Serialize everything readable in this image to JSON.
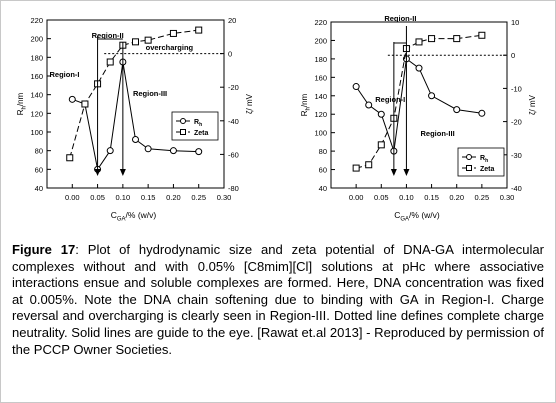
{
  "chart_data": [
    {
      "type": "line",
      "x": [
        0.0,
        0.025,
        0.05,
        0.075,
        0.1,
        0.125,
        0.15,
        0.2,
        0.25
      ],
      "xlabel_main": "C",
      "xlabel_sub": "GA",
      "xlabel_tail": "/% (w/v)",
      "ylabel_left": "R",
      "ylabel_left_sub": "h",
      "ylabel_left_tail": "/nm",
      "ylabel_right": "ζ/ mV",
      "xlim": [
        -0.05,
        0.3
      ],
      "ylim_left": [
        40,
        220
      ],
      "ylim_right": [
        -80,
        20
      ],
      "x_ticks": [
        "-0.05",
        "0.00",
        "0.05",
        "0.10",
        "0.15",
        "0.20",
        "0.25",
        "0.30"
      ],
      "y_left_ticks": [
        "40",
        "60",
        "80",
        "100",
        "120",
        "140",
        "160",
        "180",
        "200",
        "220"
      ],
      "y_right_ticks": [
        "-80",
        "-60",
        "-40",
        "-20",
        "0",
        "20"
      ],
      "series": [
        {
          "name": "Rh",
          "name_main": "R",
          "name_sub": "h",
          "axis": "left",
          "marker": "circle",
          "points": [
            [
              0.0,
              135
            ],
            [
              0.025,
              130
            ],
            [
              0.05,
              60
            ],
            [
              0.075,
              80
            ],
            [
              0.1,
              175
            ],
            [
              0.125,
              92
            ],
            [
              0.15,
              82
            ],
            [
              0.2,
              80
            ],
            [
              0.25,
              79
            ]
          ]
        },
        {
          "name": "Zeta",
          "axis": "right",
          "marker": "square",
          "points": [
            [
              -0.005,
              -62
            ],
            [
              0.025,
              -30
            ],
            [
              0.05,
              -18
            ],
            [
              0.075,
              -5
            ],
            [
              0.1,
              5
            ],
            [
              0.125,
              7
            ],
            [
              0.15,
              8
            ],
            [
              0.2,
              12
            ],
            [
              0.25,
              14
            ]
          ]
        }
      ],
      "annotations": {
        "region1": "Region-I",
        "region2": "Region-II",
        "region3": "Region-III",
        "overcharging": "overcharging"
      }
    },
    {
      "type": "line",
      "x": [
        0.0,
        0.025,
        0.05,
        0.075,
        0.1,
        0.125,
        0.15,
        0.2,
        0.25
      ],
      "xlabel_main": "C",
      "xlabel_sub": "GA",
      "xlabel_tail": "/% (w/v)",
      "ylabel_left": "R",
      "ylabel_left_sub": "h",
      "ylabel_left_tail": "/nm",
      "ylabel_right": "ζ/ mV",
      "xlim": [
        -0.05,
        0.3
      ],
      "ylim_left": [
        40,
        220
      ],
      "ylim_right": [
        -40,
        10
      ],
      "x_ticks": [
        "-0.05",
        "0.00",
        "0.05",
        "0.10",
        "0.15",
        "0.20",
        "0.25",
        "0.30"
      ],
      "y_left_ticks": [
        "40",
        "60",
        "80",
        "100",
        "120",
        "140",
        "160",
        "180",
        "200",
        "220"
      ],
      "y_right_ticks": [
        "-40",
        "-30",
        "-20",
        "-10",
        "0",
        "10"
      ],
      "series": [
        {
          "name": "Rh",
          "name_main": "R",
          "name_sub": "h",
          "axis": "left",
          "marker": "circle",
          "points": [
            [
              0.0,
              150
            ],
            [
              0.025,
              130
            ],
            [
              0.05,
              120
            ],
            [
              0.075,
              80
            ],
            [
              0.1,
              180
            ],
            [
              0.125,
              170
            ],
            [
              0.15,
              140
            ],
            [
              0.2,
              125
            ],
            [
              0.25,
              121
            ]
          ]
        },
        {
          "name": "Zeta",
          "axis": "right",
          "marker": "square",
          "points": [
            [
              0.0,
              -34
            ],
            [
              0.025,
              -33
            ],
            [
              0.05,
              -27
            ],
            [
              0.075,
              -19
            ],
            [
              0.1,
              2
            ],
            [
              0.125,
              4
            ],
            [
              0.15,
              5
            ],
            [
              0.2,
              5
            ],
            [
              0.25,
              6
            ]
          ]
        }
      ],
      "annotations": {
        "region1": "Region-I",
        "region2": "Region-II",
        "region3": "Region-III"
      }
    }
  ],
  "caption": {
    "figure_label": "Figure 17",
    "text": ":   Plot of hydrodynamic size and zeta potential of DNA-GA intermolecular complexes without and with 0.05% [C8mim][Cl] solutions at pHc where associative interactions ensue and soluble complexes are formed.  Here, DNA concentration was fixed at 0.005%. Note the DNA chain softening due to binding with GA in Region-I. Charge reversal and overcharging is clearly seen in Region-III. Dotted line defines complete charge neutrality.  Solid lines are guide to the eye. [Rawat et.al 2013] - Reproduced by permission of the PCCP Owner Societies."
  }
}
